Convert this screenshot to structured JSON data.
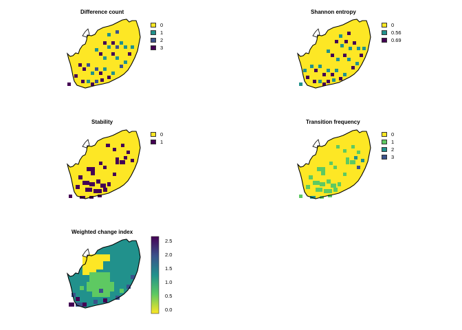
{
  "palette": {
    "yellow": "#fde725",
    "lightgreen": "#5ec962",
    "teal": "#21918c",
    "blue": "#3b528b",
    "purple": "#440154",
    "border": "#000000"
  },
  "panels": [
    {
      "id": "difference",
      "title": "Difference count",
      "legend": [
        {
          "label": "0",
          "color": "#fde725"
        },
        {
          "label": "1",
          "color": "#21918c"
        },
        {
          "label": "2",
          "color": "#3b528b"
        },
        {
          "label": "3",
          "color": "#440154"
        }
      ]
    },
    {
      "id": "entropy",
      "title": "Shannon entropy",
      "legend": [
        {
          "label": "0",
          "color": "#fde725"
        },
        {
          "label": "0.56",
          "color": "#21918c"
        },
        {
          "label": "0.69",
          "color": "#440154"
        }
      ]
    },
    {
      "id": "stability",
      "title": "Stability",
      "legend": [
        {
          "label": "0",
          "color": "#fde725"
        },
        {
          "label": "1",
          "color": "#440154"
        }
      ]
    },
    {
      "id": "transition",
      "title": "Transition frequency",
      "legend": [
        {
          "label": "0",
          "color": "#fde725"
        },
        {
          "label": "1",
          "color": "#5ec962"
        },
        {
          "label": "2",
          "color": "#21918c"
        },
        {
          "label": "3",
          "color": "#3b528b"
        }
      ]
    },
    {
      "id": "weighted",
      "title": "Weighted change index",
      "colorbar": {
        "ticks": [
          "2.5",
          "2.0",
          "1.5",
          "1.0",
          "0.5",
          "0.0"
        ],
        "min": 0,
        "max": 2.8
      }
    }
  ]
}
